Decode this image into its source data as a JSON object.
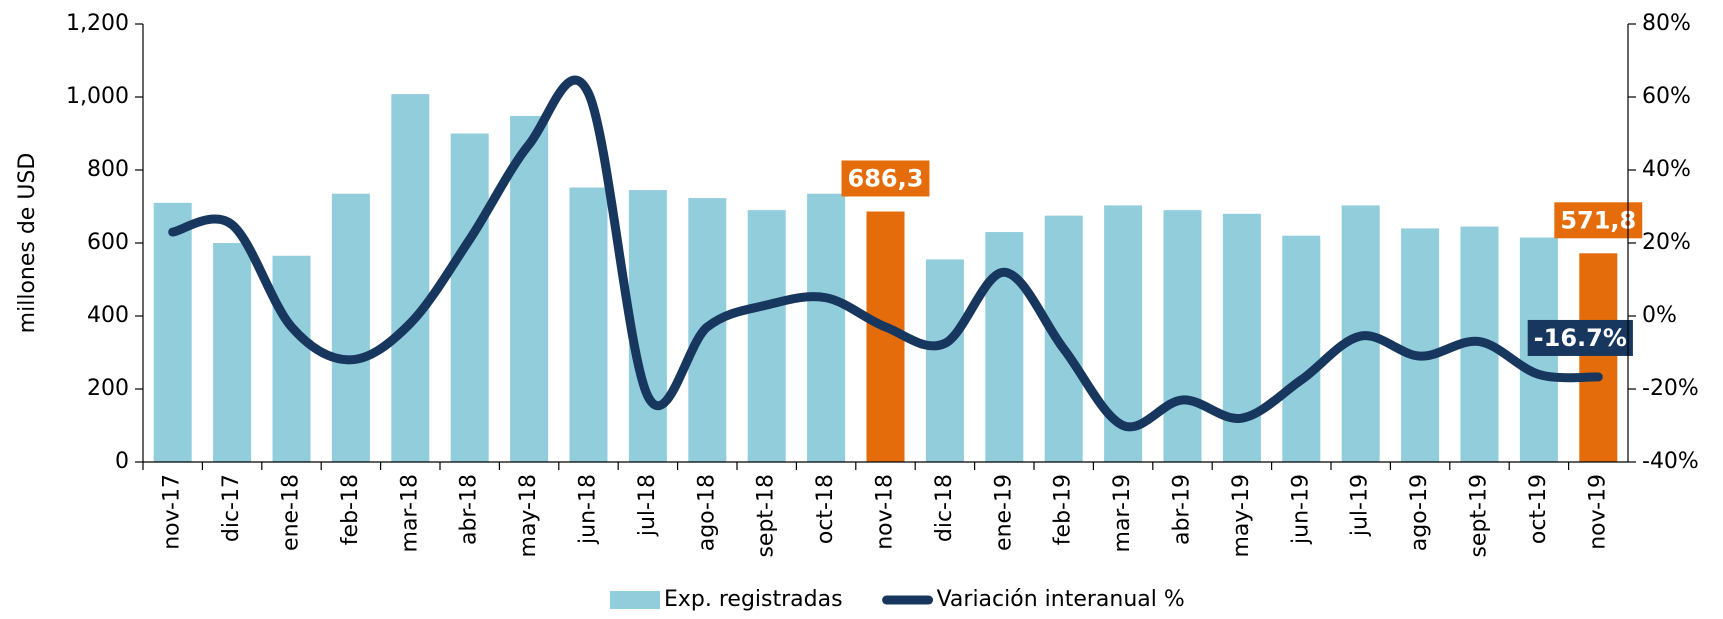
{
  "chart_data": {
    "type": "bar_line",
    "categories": [
      "nov-17",
      "dic-17",
      "ene-18",
      "feb-18",
      "mar-18",
      "abr-18",
      "may-18",
      "jun-18",
      "jul-18",
      "ago-18",
      "sept-18",
      "oct-18",
      "nov-18",
      "dic-18",
      "ene-19",
      "feb-19",
      "mar-19",
      "abr-19",
      "may-19",
      "jun-19",
      "jul-19",
      "ago-19",
      "sept-19",
      "oct-19",
      "nov-19"
    ],
    "ylabel": "millones de USD",
    "ylim": [
      0,
      1200
    ],
    "yticks": [
      0,
      200,
      400,
      600,
      800,
      {
        "value": 1000,
        "label": "1,000"
      },
      {
        "value": 1200,
        "label": "1,200"
      }
    ],
    "y2lim": [
      -40,
      80
    ],
    "y2ticks": [
      {
        "value": -40,
        "label": "-40%"
      },
      {
        "value": -20,
        "label": "-20%"
      },
      {
        "value": 0,
        "label": "0%"
      },
      {
        "value": 20,
        "label": "20%"
      },
      {
        "value": 40,
        "label": "40%"
      },
      {
        "value": 60,
        "label": "60%"
      },
      {
        "value": 80,
        "label": "80%"
      }
    ],
    "legend": "bottom",
    "series": [
      {
        "name": "Exp. registradas",
        "type": "bar",
        "color": "#92cddc",
        "colors": [
          "#92cddc",
          "#92cddc",
          "#92cddc",
          "#92cddc",
          "#92cddc",
          "#92cddc",
          "#92cddc",
          "#92cddc",
          "#92cddc",
          "#92cddc",
          "#92cddc",
          "#92cddc",
          "#e46c0a",
          "#92cddc",
          "#92cddc",
          "#92cddc",
          "#92cddc",
          "#92cddc",
          "#92cddc",
          "#92cddc",
          "#92cddc",
          "#92cddc",
          "#92cddc",
          "#92cddc",
          "#e46c0a"
        ],
        "values": [
          710,
          600,
          565,
          735,
          1008,
          900,
          948,
          752,
          745,
          723,
          690,
          735,
          686.3,
          555,
          630,
          675,
          703,
          690,
          680,
          620,
          703,
          640,
          645,
          615,
          571.8
        ],
        "value_labels": [
          null,
          null,
          null,
          null,
          null,
          null,
          null,
          null,
          null,
          null,
          null,
          null,
          "686,3",
          null,
          null,
          null,
          null,
          null,
          null,
          null,
          null,
          null,
          null,
          null,
          "571,8"
        ]
      },
      {
        "name": "Variación interanual %",
        "type": "line",
        "axis": "y2",
        "color": "#17375e",
        "values": [
          23,
          25,
          -3,
          -12,
          -2,
          21,
          47,
          61,
          -22,
          -3,
          3,
          5,
          -3,
          -7.5,
          12,
          -9,
          -30,
          -23,
          -28,
          -17.5,
          -5.5,
          -11,
          -7,
          -16,
          -16.7
        ],
        "value_labels": [
          null,
          null,
          null,
          null,
          null,
          null,
          null,
          null,
          null,
          null,
          null,
          null,
          null,
          null,
          null,
          null,
          null,
          null,
          null,
          null,
          null,
          null,
          null,
          null,
          "-16.7%"
        ]
      }
    ]
  }
}
